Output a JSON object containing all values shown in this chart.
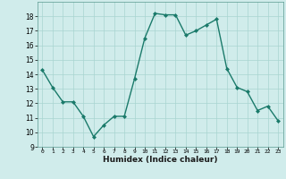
{
  "x": [
    0,
    1,
    2,
    3,
    4,
    5,
    6,
    7,
    8,
    9,
    10,
    11,
    12,
    13,
    14,
    15,
    16,
    17,
    18,
    19,
    20,
    21,
    22,
    23
  ],
  "y": [
    14.3,
    13.1,
    12.1,
    12.1,
    11.1,
    9.7,
    10.5,
    11.1,
    11.1,
    13.7,
    16.5,
    18.2,
    18.1,
    18.1,
    16.7,
    17.0,
    17.4,
    17.8,
    14.4,
    13.1,
    12.8,
    11.5,
    11.8,
    10.8
  ],
  "xlabel": "Humidex (Indice chaleur)",
  "xlim": [
    -0.5,
    23.5
  ],
  "ylim": [
    9,
    19
  ],
  "yticks": [
    9,
    10,
    11,
    12,
    13,
    14,
    15,
    16,
    17,
    18
  ],
  "xticks": [
    0,
    1,
    2,
    3,
    4,
    5,
    6,
    7,
    8,
    9,
    10,
    11,
    12,
    13,
    14,
    15,
    16,
    17,
    18,
    19,
    20,
    21,
    22,
    23
  ],
  "line_color": "#1a7a6a",
  "marker_color": "#1a7a6a",
  "bg_color": "#d0eceb",
  "grid_color": "#a8d4d0",
  "xlabel_color": "#1a1a1a"
}
